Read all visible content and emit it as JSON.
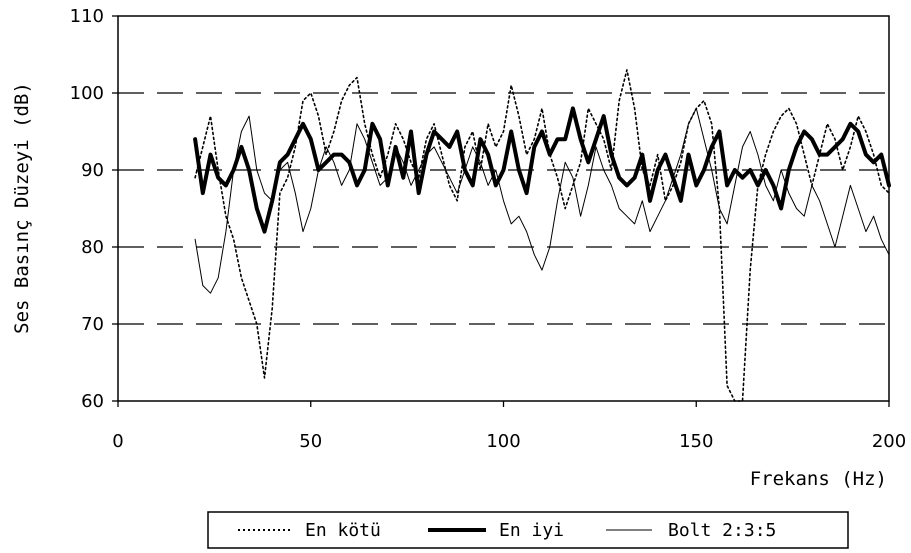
{
  "chart_data": {
    "type": "line",
    "title": "",
    "xlabel": "Frekans (Hz)",
    "ylabel": "Ses Basınç Düzeyi (dB)",
    "xlim": [
      0,
      200
    ],
    "ylim": [
      60,
      110
    ],
    "xticks": [
      0,
      50,
      100,
      150,
      200
    ],
    "yticks": [
      60,
      70,
      80,
      90,
      100,
      110
    ],
    "xtick_labels": [
      "0",
      "50",
      "100",
      "150",
      "200"
    ],
    "ytick_labels": [
      "60",
      "70",
      "80",
      "90",
      "100",
      "110"
    ],
    "grid": "horizontal dashed",
    "legend_position": "bottom",
    "series": [
      {
        "name": "En kötü",
        "style": "dotted",
        "color": "#000000",
        "x": [
          20,
          22,
          24,
          26,
          28,
          30,
          32,
          34,
          36,
          38,
          40,
          42,
          44,
          46,
          48,
          50,
          52,
          54,
          56,
          58,
          60,
          62,
          64,
          66,
          68,
          70,
          72,
          74,
          76,
          78,
          80,
          82,
          84,
          86,
          88,
          90,
          92,
          94,
          96,
          98,
          100,
          102,
          104,
          106,
          108,
          110,
          112,
          114,
          116,
          118,
          120,
          122,
          124,
          126,
          128,
          130,
          132,
          134,
          136,
          138,
          140,
          142,
          144,
          146,
          148,
          150,
          152,
          154,
          156,
          158,
          160,
          162,
          164,
          166,
          168,
          170,
          172,
          174,
          176,
          178,
          180,
          182,
          184,
          186,
          188,
          190,
          192,
          194,
          196,
          198,
          200
        ],
        "y": [
          89,
          93,
          97,
          90,
          84,
          81,
          76,
          73,
          70,
          63,
          72,
          87,
          89,
          93,
          99,
          100,
          97,
          92,
          95,
          99,
          101,
          102,
          96,
          92,
          89,
          92,
          96,
          94,
          91,
          89,
          94,
          96,
          92,
          88,
          86,
          93,
          95,
          90,
          96,
          93,
          95,
          101,
          97,
          92,
          94,
          98,
          92,
          89,
          85,
          88,
          91,
          98,
          96,
          94,
          90,
          99,
          103,
          98,
          90,
          88,
          92,
          86,
          88,
          91,
          96,
          98,
          99,
          96,
          85,
          62,
          60,
          60,
          77,
          88,
          92,
          95,
          97,
          98,
          96,
          92,
          88,
          92,
          96,
          94,
          90,
          93,
          97,
          95,
          92,
          88,
          87
        ]
      },
      {
        "name": "En iyi",
        "style": "thick",
        "color": "#000000",
        "x": [
          20,
          22,
          24,
          26,
          28,
          30,
          32,
          34,
          36,
          38,
          40,
          42,
          44,
          46,
          48,
          50,
          52,
          54,
          56,
          58,
          60,
          62,
          64,
          66,
          68,
          70,
          72,
          74,
          76,
          78,
          80,
          82,
          84,
          86,
          88,
          90,
          92,
          94,
          96,
          98,
          100,
          102,
          104,
          106,
          108,
          110,
          112,
          114,
          116,
          118,
          120,
          122,
          124,
          126,
          128,
          130,
          132,
          134,
          136,
          138,
          140,
          142,
          144,
          146,
          148,
          150,
          152,
          154,
          156,
          158,
          160,
          162,
          164,
          166,
          168,
          170,
          172,
          174,
          176,
          178,
          180,
          182,
          184,
          186,
          188,
          190,
          192,
          194,
          196,
          198,
          200
        ],
        "y": [
          94,
          87,
          92,
          89,
          88,
          90,
          93,
          90,
          85,
          82,
          86,
          91,
          92,
          94,
          96,
          94,
          90,
          91,
          92,
          92,
          91,
          88,
          90,
          96,
          94,
          88,
          93,
          89,
          95,
          87,
          92,
          95,
          94,
          93,
          95,
          90,
          88,
          94,
          92,
          88,
          90,
          95,
          90,
          87,
          93,
          95,
          92,
          94,
          94,
          98,
          94,
          91,
          94,
          97,
          92,
          89,
          88,
          89,
          92,
          86,
          90,
          92,
          89,
          86,
          92,
          88,
          90,
          93,
          95,
          88,
          90,
          89,
          90,
          88,
          90,
          88,
          85,
          90,
          93,
          95,
          94,
          92,
          92,
          93,
          94,
          96,
          95,
          92,
          91,
          92,
          88
        ]
      },
      {
        "name": "Bolt 2:3:5",
        "style": "thin",
        "color": "#000000",
        "x": [
          20,
          22,
          24,
          26,
          28,
          30,
          32,
          34,
          36,
          38,
          40,
          42,
          44,
          46,
          48,
          50,
          52,
          54,
          56,
          58,
          60,
          62,
          64,
          66,
          68,
          70,
          72,
          74,
          76,
          78,
          80,
          82,
          84,
          86,
          88,
          90,
          92,
          94,
          96,
          98,
          100,
          102,
          104,
          106,
          108,
          110,
          112,
          114,
          116,
          118,
          120,
          122,
          124,
          126,
          128,
          130,
          132,
          134,
          136,
          138,
          140,
          142,
          144,
          146,
          148,
          150,
          152,
          154,
          156,
          158,
          160,
          162,
          164,
          166,
          168,
          170,
          172,
          174,
          176,
          178,
          180,
          182,
          184,
          186,
          188,
          190,
          192,
          194,
          196,
          198,
          200
        ],
        "y": [
          81,
          75,
          74,
          76,
          82,
          90,
          95,
          97,
          90,
          87,
          86,
          90,
          91,
          87,
          82,
          85,
          90,
          93,
          91,
          88,
          90,
          96,
          94,
          91,
          88,
          89,
          93,
          91,
          88,
          90,
          92,
          93,
          91,
          89,
          87,
          90,
          93,
          91,
          88,
          90,
          86,
          83,
          84,
          82,
          79,
          77,
          80,
          86,
          91,
          89,
          84,
          88,
          93,
          90,
          88,
          85,
          84,
          83,
          86,
          82,
          84,
          86,
          89,
          92,
          96,
          98,
          94,
          90,
          85,
          83,
          88,
          93,
          95,
          92,
          88,
          86,
          90,
          87,
          85,
          84,
          88,
          86,
          83,
          80,
          84,
          88,
          85,
          82,
          84,
          81,
          79
        ]
      }
    ]
  }
}
